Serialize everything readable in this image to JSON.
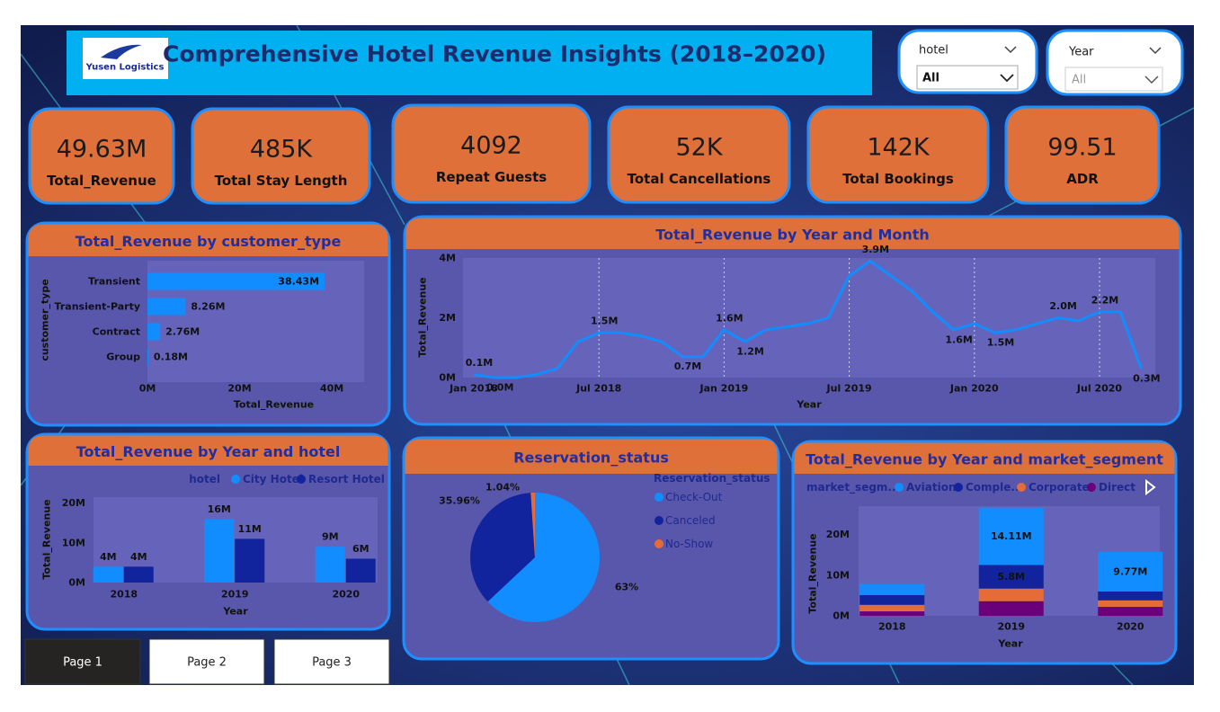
{
  "header": {
    "logo": "Yusen Logistics",
    "title": "Comprehensive Hotel Revenue Insights (2018–2020)"
  },
  "filters": [
    {
      "label": "hotel",
      "value": "All"
    },
    {
      "label": "Year",
      "value": "All"
    }
  ],
  "kpis": [
    {
      "value": "49.63M",
      "label": "Total_Revenue"
    },
    {
      "value": "485K",
      "label": "Total Stay Length"
    },
    {
      "value": "4092",
      "label": "Repeat Guests"
    },
    {
      "value": "52K",
      "label": "Total Cancellations"
    },
    {
      "value": "142K",
      "label": "Total Bookings"
    },
    {
      "value": "99.51",
      "label": "ADR"
    }
  ],
  "pages": [
    "Page 1",
    "Page 2",
    "Page 3"
  ],
  "chart_data": [
    {
      "type": "hbar",
      "title": "Total_Revenue by customer_type",
      "categories": [
        "Transient",
        "Transient-Party",
        "Contract",
        "Group"
      ],
      "values": [
        38.43,
        8.26,
        2.76,
        0.18
      ],
      "value_labels": [
        "38.43M",
        "8.26M",
        "2.76M",
        "0.18M"
      ],
      "color": "#118dff",
      "xlim": [
        0,
        47
      ],
      "xticks": [
        {
          "value": 0,
          "label": "0M"
        },
        {
          "value": 20,
          "label": "20M"
        },
        {
          "value": 40,
          "label": "40M"
        }
      ],
      "x_label": "Total_Revenue",
      "y_label": "customer_type"
    },
    {
      "type": "line",
      "title": "Total_Revenue by Year and Month",
      "categories": [
        "Jan 2018",
        null,
        null,
        null,
        null,
        null,
        "Jul 2018",
        null,
        null,
        null,
        null,
        null,
        "Jan 2019",
        null,
        null,
        null,
        null,
        null,
        "Jul 2019",
        null,
        null,
        null,
        null,
        null,
        "Jan 2020",
        null,
        null,
        null,
        null,
        null,
        "Jul 2020",
        null,
        null
      ],
      "values": [
        0.1,
        0.0,
        0.0,
        0.1,
        0.3,
        1.2,
        1.5,
        1.5,
        1.4,
        1.2,
        0.7,
        0.7,
        1.6,
        1.2,
        1.6,
        1.7,
        1.8,
        2.0,
        3.4,
        3.9,
        3.4,
        2.9,
        2.2,
        1.6,
        1.8,
        1.5,
        1.6,
        1.8,
        2.0,
        1.9,
        2.2,
        2.2,
        0.3
      ],
      "value_labels": [
        "0.1M",
        "0.0M",
        null,
        null,
        null,
        null,
        "1.5M",
        null,
        null,
        null,
        "0.7M",
        null,
        "1.6M",
        "1.2M",
        null,
        null,
        null,
        null,
        null,
        "3.9M",
        null,
        null,
        null,
        "1.6M",
        null,
        "1.5M",
        null,
        null,
        "2.0M",
        null,
        "2.2M",
        null,
        "0.3M"
      ],
      "color": "#118dff",
      "ylim": [
        0,
        4
      ],
      "yticks": [
        {
          "value": 0,
          "label": "0M"
        },
        {
          "value": 2,
          "label": "2M"
        },
        {
          "value": 4,
          "label": "4M"
        }
      ],
      "x_label": "Year",
      "y_label": "Total_Revenue"
    },
    {
      "type": "grouped_bar",
      "title": "Total_Revenue by Year and hotel",
      "legend_title": "hotel",
      "categories": [
        "2018",
        "2019",
        "2020"
      ],
      "series": [
        {
          "name": "City Hotel",
          "color": "#118dff",
          "values": [
            4,
            16,
            9
          ],
          "value_labels": [
            "4M",
            "16M",
            "9M"
          ]
        },
        {
          "name": "Resort Hotel",
          "color": "#12239e",
          "values": [
            4,
            11,
            6
          ],
          "value_labels": [
            "4M",
            "11M",
            "6M"
          ]
        }
      ],
      "ylim": [
        0,
        21.5
      ],
      "yticks": [
        {
          "value": 0,
          "label": "0M"
        },
        {
          "value": 10,
          "label": "10M"
        },
        {
          "value": 20,
          "label": "20M"
        }
      ],
      "x_label": "Year",
      "y_label": "Total_Revenue"
    },
    {
      "type": "pie",
      "title": "Reservation_status",
      "legend_title": "Reservation_status",
      "categories": [
        "Check-Out",
        "Canceled",
        "No-Show"
      ],
      "values": [
        63,
        35.96,
        1.04
      ],
      "value_labels": [
        "63%",
        "35.96%",
        "1.04%"
      ],
      "colors": [
        "#118dff",
        "#12239e",
        "#e66c37"
      ]
    },
    {
      "type": "stacked_bar",
      "title": "Total_Revenue by Year and market_segment",
      "legend_title": "market_segm...",
      "categories": [
        "2018",
        "2019",
        "2020"
      ],
      "series": [
        {
          "name": "Aviation",
          "color": "#118dff",
          "values": [
            2.7,
            14.11,
            9.77
          ],
          "value_labels": [
            null,
            "14.11M",
            "9.77M"
          ]
        },
        {
          "name": "Comple...",
          "color": "#12239e",
          "values": [
            2.4,
            5.8,
            2.2
          ],
          "value_labels": [
            null,
            "5.8M",
            null
          ]
        },
        {
          "name": "Corporate",
          "color": "#e66c37",
          "values": [
            1.6,
            3.1,
            1.6
          ],
          "value_labels": [
            null,
            null,
            null
          ]
        },
        {
          "name": "Direct",
          "color": "#6b007b",
          "values": [
            1.1,
            3.6,
            2.2
          ],
          "value_labels": [
            null,
            null,
            null
          ]
        }
      ],
      "ylim": [
        0,
        27
      ],
      "yticks": [
        {
          "value": 0,
          "label": "0M"
        },
        {
          "value": 10,
          "label": "10M"
        },
        {
          "value": 20,
          "label": "20M"
        }
      ],
      "x_label": "Year",
      "y_label": "Total_Revenue"
    }
  ]
}
